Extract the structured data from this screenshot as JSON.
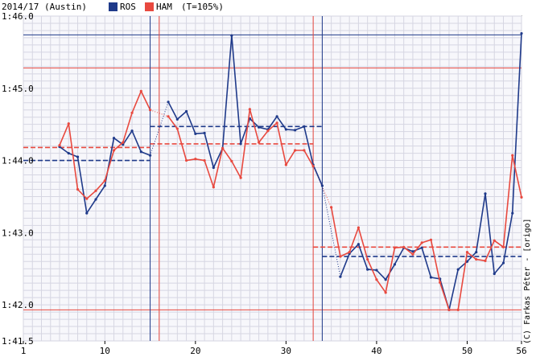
{
  "chart_data": {
    "type": "line",
    "title": "2014/17 (Austin)",
    "legend_note": "(T=105%)",
    "credit": "(C) Farkas Péter - [origo]",
    "x_ticks": [
      "1",
      "10",
      "20",
      "30",
      "40",
      "50",
      "56"
    ],
    "y_ticks": [
      {
        "value": 101.5,
        "label": "1:41.5"
      },
      {
        "value": 102.0,
        "label": "1:42.0"
      },
      {
        "value": 103.0,
        "label": "1:43.0"
      },
      {
        "value": 104.0,
        "label": "1:44.0"
      },
      {
        "value": 105.0,
        "label": "1:45.0"
      },
      {
        "value": 106.0,
        "label": "1:46.0"
      }
    ],
    "xlim": [
      1,
      56
    ],
    "ylim": [
      101.5,
      106.0
    ],
    "grid": true,
    "series": [
      {
        "name": "ROS",
        "color": "#1f3a8a",
        "points": [
          [
            5,
            104.19
          ],
          [
            6,
            104.1
          ],
          [
            7,
            104.05
          ],
          [
            8,
            103.27
          ],
          [
            9,
            103.46
          ],
          [
            10,
            103.65
          ],
          [
            11,
            104.31
          ],
          [
            12,
            104.22
          ],
          [
            13,
            104.41
          ],
          [
            14,
            104.12
          ],
          [
            15,
            104.07
          ],
          [
            17,
            104.81
          ],
          [
            18,
            104.57
          ],
          [
            19,
            104.68
          ],
          [
            20,
            104.37
          ],
          [
            21,
            104.38
          ],
          [
            22,
            103.9
          ],
          [
            23,
            104.17
          ],
          [
            24,
            105.73
          ],
          [
            25,
            104.23
          ],
          [
            26,
            104.58
          ],
          [
            27,
            104.46
          ],
          [
            28,
            104.43
          ],
          [
            29,
            104.61
          ],
          [
            30,
            104.43
          ],
          [
            31,
            104.42
          ],
          [
            32,
            104.47
          ],
          [
            33,
            103.94
          ],
          [
            34,
            103.65
          ],
          [
            36,
            102.39
          ],
          [
            37,
            102.71
          ],
          [
            38,
            102.84
          ],
          [
            39,
            102.49
          ],
          [
            40,
            102.48
          ],
          [
            41,
            102.35
          ],
          [
            42,
            102.56
          ],
          [
            43,
            102.79
          ],
          [
            44,
            102.74
          ],
          [
            45,
            102.79
          ],
          [
            46,
            102.38
          ],
          [
            47,
            102.36
          ],
          [
            48,
            101.93
          ],
          [
            49,
            102.49
          ],
          [
            50,
            102.6
          ],
          [
            51,
            102.73
          ],
          [
            52,
            103.54
          ],
          [
            53,
            102.43
          ],
          [
            54,
            102.58
          ],
          [
            55,
            103.27
          ],
          [
            56,
            105.76
          ]
        ]
      },
      {
        "name": "HAM",
        "color": "#e8493f",
        "points": [
          [
            5,
            104.21
          ],
          [
            6,
            104.51
          ],
          [
            7,
            103.6
          ],
          [
            8,
            103.47
          ],
          [
            9,
            103.58
          ],
          [
            10,
            103.72
          ],
          [
            11,
            104.14
          ],
          [
            12,
            104.25
          ],
          [
            13,
            104.66
          ],
          [
            14,
            104.96
          ],
          [
            15,
            104.7
          ],
          [
            17,
            104.61
          ],
          [
            18,
            104.44
          ],
          [
            19,
            104.0
          ],
          [
            20,
            104.02
          ],
          [
            21,
            104.0
          ],
          [
            22,
            103.63
          ],
          [
            23,
            104.17
          ],
          [
            24,
            103.99
          ],
          [
            25,
            103.76
          ],
          [
            26,
            104.71
          ],
          [
            27,
            104.25
          ],
          [
            28,
            104.41
          ],
          [
            29,
            104.52
          ],
          [
            30,
            103.94
          ],
          [
            31,
            104.14
          ],
          [
            32,
            104.14
          ],
          [
            33,
            103.92
          ],
          [
            35,
            103.35
          ],
          [
            36,
            102.67
          ],
          [
            37,
            102.73
          ],
          [
            38,
            103.07
          ],
          [
            39,
            102.63
          ],
          [
            40,
            102.35
          ],
          [
            41,
            102.17
          ],
          [
            42,
            102.79
          ],
          [
            43,
            102.8
          ],
          [
            44,
            102.7
          ],
          [
            45,
            102.86
          ],
          [
            46,
            102.9
          ],
          [
            47,
            102.31
          ],
          [
            48,
            101.93
          ],
          [
            49,
            101.93
          ],
          [
            50,
            102.73
          ],
          [
            51,
            102.63
          ],
          [
            52,
            102.61
          ],
          [
            53,
            102.89
          ],
          [
            54,
            102.8
          ],
          [
            55,
            104.07
          ],
          [
            56,
            103.49
          ]
        ]
      }
    ],
    "gap_links": [
      {
        "series": "HAM",
        "from": [
          15,
          104.7
        ],
        "to": [
          17,
          104.61
        ]
      },
      {
        "series": "ROS",
        "from": [
          15,
          104.07
        ],
        "to": [
          17,
          104.81
        ]
      },
      {
        "series": "HAM",
        "from": [
          33,
          103.92
        ],
        "to": [
          35,
          103.35
        ]
      },
      {
        "series": "ROS",
        "from": [
          34,
          103.65
        ],
        "to": [
          36,
          102.39
        ]
      }
    ],
    "stint_averages": [
      {
        "series": "ROS",
        "from": 1,
        "to": 15,
        "value": 104.0
      },
      {
        "series": "HAM",
        "from": 1,
        "to": 15,
        "value": 104.18
      },
      {
        "series": "ROS",
        "from": 15,
        "to": 34,
        "value": 104.47
      },
      {
        "series": "HAM",
        "from": 15,
        "to": 33,
        "value": 104.23
      },
      {
        "series": "ROS",
        "from": 34,
        "to": 56,
        "value": 102.67
      },
      {
        "series": "HAM",
        "from": 33,
        "to": 56,
        "value": 102.8
      }
    ],
    "pit_laps": [
      {
        "series": "ROS",
        "lap": 15
      },
      {
        "series": "HAM",
        "lap": 16
      },
      {
        "series": "HAM",
        "lap": 33
      },
      {
        "series": "ROS",
        "lap": 34
      }
    ],
    "reference_lines": [
      {
        "series": "ROS",
        "value": 105.74
      },
      {
        "series": "HAM",
        "value": 105.28
      },
      {
        "series": "HAM",
        "value": 101.93
      }
    ]
  }
}
